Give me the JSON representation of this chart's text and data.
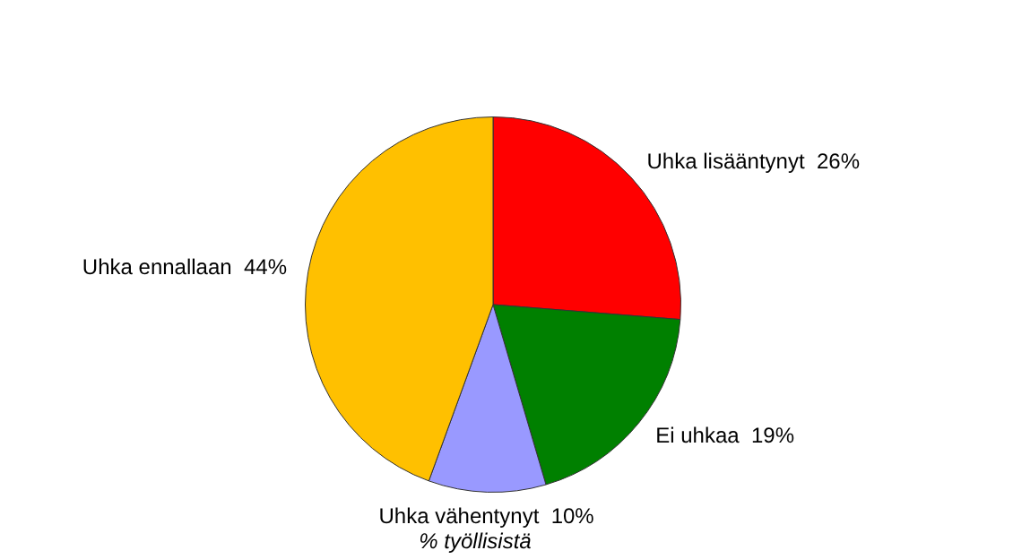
{
  "chart_data": {
    "type": "pie",
    "categories": [
      "Uhka lisääntynyt",
      "Ei uhkaa",
      "Uhka vähentynyt",
      "Uhka ennallaan"
    ],
    "values": [
      26,
      19,
      10,
      44
    ],
    "value_labels": [
      "26%",
      "19%",
      "10%",
      "44%"
    ],
    "colors": [
      "#ff0000",
      "#008000",
      "#9999ff",
      "#ffc000"
    ],
    "legend": false,
    "annotations": [
      "% työllisistä"
    ]
  }
}
